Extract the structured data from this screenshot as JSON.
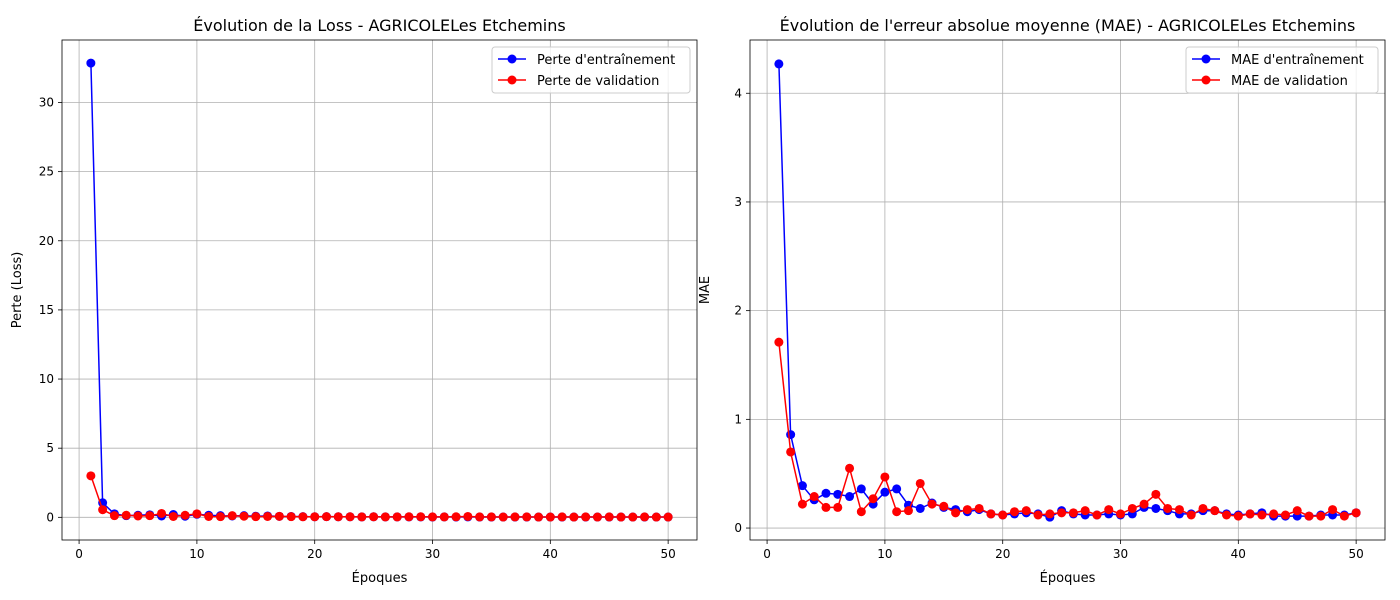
{
  "figure": {
    "colors": {
      "train": "#0000ff",
      "val": "#ff0000",
      "grid": "#b0b0b0",
      "axis": "#000000"
    }
  },
  "chart_data": [
    {
      "type": "line",
      "title": "Évolution de la Loss - AGRICOLELes Etchemins",
      "xlabel": "Époques",
      "ylabel": "Perte (Loss)",
      "xlim": [
        -1.45,
        52.45
      ],
      "ylim": [
        -1.64,
        34.52
      ],
      "xticks": [
        0,
        10,
        20,
        30,
        40,
        50
      ],
      "yticks": [
        0,
        5,
        10,
        15,
        20,
        25,
        30
      ],
      "grid": true,
      "legend_position": "top-right",
      "x": [
        1,
        2,
        3,
        4,
        5,
        6,
        7,
        8,
        9,
        10,
        11,
        12,
        13,
        14,
        15,
        16,
        17,
        18,
        19,
        20,
        21,
        22,
        23,
        24,
        25,
        26,
        27,
        28,
        29,
        30,
        31,
        32,
        33,
        34,
        35,
        36,
        37,
        38,
        39,
        40,
        41,
        42,
        43,
        44,
        45,
        46,
        47,
        48,
        49,
        50
      ],
      "series": [
        {
          "name": "Perte d'entraînement",
          "color": "#0000ff",
          "values": [
            32.85,
            1.05,
            0.25,
            0.12,
            0.15,
            0.18,
            0.1,
            0.2,
            0.08,
            0.22,
            0.15,
            0.12,
            0.1,
            0.12,
            0.08,
            0.1,
            0.07,
            0.06,
            0.05,
            0.04,
            0.05,
            0.04,
            0.04,
            0.03,
            0.04,
            0.03,
            0.03,
            0.03,
            0.03,
            0.02,
            0.03,
            0.02,
            0.03,
            0.02,
            0.02,
            0.02,
            0.02,
            0.02,
            0.02,
            0.02,
            0.02,
            0.02,
            0.02,
            0.02,
            0.02,
            0.02,
            0.02,
            0.02,
            0.02,
            0.02
          ]
        },
        {
          "name": "Perte de validation",
          "color": "#ff0000",
          "values": [
            3.0,
            0.55,
            0.12,
            0.15,
            0.1,
            0.12,
            0.28,
            0.06,
            0.15,
            0.25,
            0.06,
            0.05,
            0.12,
            0.08,
            0.05,
            0.06,
            0.07,
            0.05,
            0.04,
            0.04,
            0.05,
            0.04,
            0.04,
            0.03,
            0.04,
            0.03,
            0.03,
            0.04,
            0.04,
            0.03,
            0.03,
            0.04,
            0.06,
            0.03,
            0.03,
            0.02,
            0.03,
            0.03,
            0.02,
            0.02,
            0.03,
            0.02,
            0.03,
            0.02,
            0.03,
            0.02,
            0.02,
            0.03,
            0.02,
            0.02
          ]
        }
      ]
    },
    {
      "type": "line",
      "title": "Évolution de l'erreur absolue moyenne (MAE) - AGRICOLELes Etchemins",
      "xlabel": "Époques",
      "ylabel": "MAE",
      "xlim": [
        -1.45,
        52.45
      ],
      "ylim": [
        -0.11,
        4.49
      ],
      "xticks": [
        0,
        10,
        20,
        30,
        40,
        50
      ],
      "yticks": [
        0,
        1,
        2,
        3,
        4
      ],
      "grid": true,
      "legend_position": "top-right",
      "x": [
        1,
        2,
        3,
        4,
        5,
        6,
        7,
        8,
        9,
        10,
        11,
        12,
        13,
        14,
        15,
        16,
        17,
        18,
        19,
        20,
        21,
        22,
        23,
        24,
        25,
        26,
        27,
        28,
        29,
        30,
        31,
        32,
        33,
        34,
        35,
        36,
        37,
        38,
        39,
        40,
        41,
        42,
        43,
        44,
        45,
        46,
        47,
        48,
        49,
        50
      ],
      "series": [
        {
          "name": "MAE d'entraînement",
          "color": "#0000ff",
          "values": [
            4.27,
            0.86,
            0.39,
            0.26,
            0.32,
            0.31,
            0.29,
            0.36,
            0.22,
            0.33,
            0.36,
            0.21,
            0.18,
            0.23,
            0.19,
            0.17,
            0.15,
            0.17,
            0.13,
            0.12,
            0.13,
            0.14,
            0.13,
            0.1,
            0.16,
            0.13,
            0.12,
            0.12,
            0.13,
            0.12,
            0.13,
            0.19,
            0.18,
            0.16,
            0.13,
            0.13,
            0.16,
            0.16,
            0.13,
            0.12,
            0.13,
            0.14,
            0.11,
            0.11,
            0.11,
            0.11,
            0.12,
            0.12,
            0.12,
            0.14
          ]
        },
        {
          "name": "MAE de validation",
          "color": "#ff0000",
          "values": [
            1.71,
            0.7,
            0.22,
            0.29,
            0.19,
            0.19,
            0.55,
            0.15,
            0.27,
            0.47,
            0.15,
            0.16,
            0.41,
            0.22,
            0.2,
            0.14,
            0.17,
            0.18,
            0.13,
            0.12,
            0.15,
            0.16,
            0.12,
            0.13,
            0.14,
            0.14,
            0.16,
            0.12,
            0.17,
            0.13,
            0.18,
            0.22,
            0.31,
            0.18,
            0.17,
            0.12,
            0.18,
            0.16,
            0.12,
            0.11,
            0.13,
            0.12,
            0.13,
            0.12,
            0.16,
            0.11,
            0.11,
            0.17,
            0.11,
            0.14
          ]
        }
      ]
    }
  ]
}
